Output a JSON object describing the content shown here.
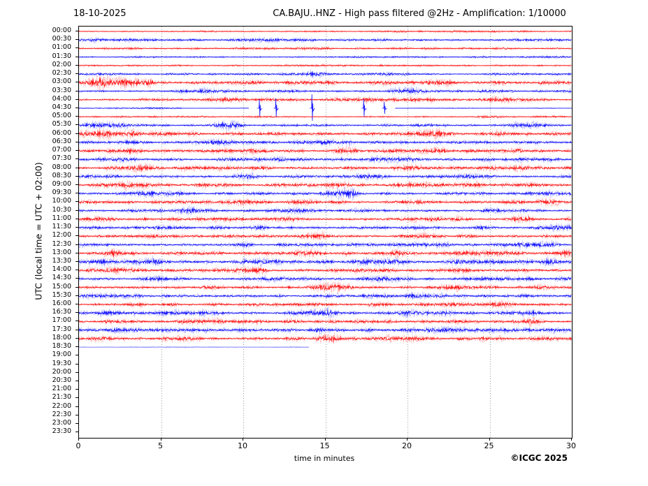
{
  "titles": {
    "date": "18-10-2025",
    "main": "CA.BAJU..HNZ - High pass filtered @2Hz - Amplification: 1/10000"
  },
  "axes": {
    "y_label": "UTC (local time = UTC + 02:00)",
    "x_label": "time in minutes",
    "x_ticks": [
      "0",
      "5",
      "10",
      "15",
      "20",
      "25",
      "30"
    ],
    "x_tick_minutes": [
      0,
      5,
      10,
      15,
      20,
      25,
      30
    ],
    "grid_minutes": [
      5,
      10,
      15,
      20,
      25
    ]
  },
  "footer": {
    "credit": "©ICGC 2025"
  },
  "colors": {
    "red": "#ff0000",
    "blue": "#0000ff",
    "partial_blue": "#7878ff",
    "grid": "#666666",
    "frame": "#000000"
  },
  "chart_data": {
    "type": "line",
    "variant": "helicorder-seismogram",
    "title": "CA.BAJU..HNZ - High pass filtered @2Hz - Amplification: 1/10000",
    "date": "18-10-2025",
    "xlabel": "time in minutes",
    "ylabel": "UTC (local time = UTC + 02:00)",
    "xlim": [
      0,
      30
    ],
    "row_interval_minutes": 30,
    "rows": [
      {
        "label": "00:00",
        "color": "red",
        "kind": "noise",
        "amp": 0.35,
        "bursts": [
          [
            8.5,
            2,
            0.8
          ],
          [
            14.5,
            1,
            1.2
          ],
          [
            20.5,
            1.5,
            1.0
          ],
          [
            26,
            2,
            0.6
          ]
        ]
      },
      {
        "label": "00:30",
        "color": "blue",
        "kind": "noise",
        "amp": 0.6,
        "bursts": [
          [
            1,
            1.5,
            0.8
          ],
          [
            13,
            2,
            0.5
          ],
          [
            21,
            2,
            0.5
          ]
        ]
      },
      {
        "label": "01:00",
        "color": "red",
        "kind": "noise",
        "amp": 0.5,
        "bursts": [
          [
            10,
            3,
            0.4
          ],
          [
            18,
            2,
            0.4
          ]
        ]
      },
      {
        "label": "01:30",
        "color": "blue",
        "kind": "noise",
        "amp": 0.45,
        "bursts": [
          [
            23,
            2,
            0.4
          ]
        ]
      },
      {
        "label": "02:00",
        "color": "red",
        "kind": "noise",
        "amp": 0.4,
        "bursts": [
          [
            7,
            2,
            0.4
          ],
          [
            16,
            2,
            0.3
          ]
        ]
      },
      {
        "label": "02:30",
        "color": "blue",
        "kind": "noise",
        "amp": 0.6,
        "bursts": [
          [
            14,
            1,
            1.0
          ],
          [
            17,
            0.8,
            0.9
          ],
          [
            19.5,
            1,
            0.8
          ],
          [
            27,
            1,
            0.6
          ]
        ]
      },
      {
        "label": "03:00",
        "color": "red",
        "kind": "noise",
        "amp": 0.9,
        "bursts": [
          [
            1.5,
            0.5,
            1.8
          ],
          [
            2.5,
            1.2,
            1.5
          ],
          [
            4,
            0.4,
            1.6
          ],
          [
            14.8,
            1,
            1.1
          ],
          [
            20,
            1.5,
            0.8
          ],
          [
            25,
            2,
            0.5
          ]
        ]
      },
      {
        "label": "03:30",
        "color": "blue",
        "kind": "noise",
        "amp": 0.7,
        "bursts": [
          [
            8,
            1,
            0.6
          ],
          [
            20,
            0.6,
            1.4
          ],
          [
            24,
            1.5,
            0.7
          ],
          [
            29.5,
            0.4,
            1.2
          ]
        ]
      },
      {
        "label": "04:00",
        "color": "red",
        "kind": "noise",
        "amp": 0.7,
        "bursts": [
          [
            5,
            1,
            0.7
          ],
          [
            8.5,
            0.8,
            0.8
          ],
          [
            17,
            1,
            0.6
          ],
          [
            20.5,
            1,
            0.7
          ],
          [
            25.5,
            1,
            0.8
          ]
        ]
      },
      {
        "label": "04:30",
        "color": "blue",
        "kind": "spikes",
        "amp": 0.2,
        "segments": [
          [
            0,
            6.3,
            0.45
          ],
          [
            6.3,
            10.35,
            0.14
          ],
          [
            19.25,
            30,
            0.2
          ]
        ],
        "spikes": [
          {
            "t": 11.0,
            "h": 13
          },
          {
            "t": 12.0,
            "h": 14
          },
          {
            "t": 14.2,
            "h": 20
          },
          {
            "t": 17.35,
            "h": 13
          },
          {
            "t": 18.6,
            "h": 9
          }
        ]
      },
      {
        "label": "05:00",
        "color": "red",
        "kind": "noise",
        "amp": 0.45,
        "bursts": [
          [
            3,
            1,
            0.5
          ],
          [
            25,
            1.5,
            0.5
          ]
        ]
      },
      {
        "label": "05:30",
        "color": "blue",
        "kind": "noise",
        "amp": 0.8,
        "bursts": [
          [
            1.5,
            0.8,
            0.9
          ],
          [
            9,
            0.5,
            1.6
          ],
          [
            13,
            1,
            0.5
          ],
          [
            21,
            1,
            0.6
          ],
          [
            27.5,
            1,
            0.7
          ]
        ]
      },
      {
        "label": "06:00",
        "color": "red",
        "kind": "noise",
        "amp": 0.95,
        "bursts": [
          [
            1.5,
            1,
            1.0
          ],
          [
            3.5,
            1,
            0.9
          ],
          [
            12,
            1.5,
            0.5
          ],
          [
            22,
            0.8,
            1.5
          ],
          [
            26,
            1,
            0.6
          ]
        ]
      },
      {
        "label": "06:30",
        "color": "blue",
        "kind": "noise",
        "amp": 0.85,
        "bursts": [
          [
            2.5,
            1,
            0.7
          ],
          [
            8,
            1,
            0.6
          ],
          [
            16,
            0.8,
            1.3
          ],
          [
            23,
            1,
            0.5
          ]
        ]
      },
      {
        "label": "07:00",
        "color": "red",
        "kind": "noise",
        "amp": 0.85,
        "bursts": [
          [
            4,
            1,
            0.6
          ],
          [
            11.5,
            1,
            0.9
          ],
          [
            16,
            1,
            0.6
          ],
          [
            22,
            1.5,
            0.6
          ],
          [
            26.5,
            0.8,
            0.9
          ]
        ]
      },
      {
        "label": "07:30",
        "color": "blue",
        "kind": "noise",
        "amp": 0.8,
        "bursts": [
          [
            3,
            1,
            0.6
          ],
          [
            12,
            1.5,
            0.5
          ],
          [
            19,
            1,
            0.6
          ],
          [
            28.5,
            0.8,
            0.9
          ]
        ]
      },
      {
        "label": "08:00",
        "color": "red",
        "kind": "noise",
        "amp": 0.85,
        "bursts": [
          [
            4,
            0.8,
            1.0
          ],
          [
            9,
            1.5,
            0.5
          ],
          [
            15,
            1,
            0.5
          ],
          [
            20,
            1,
            0.8
          ],
          [
            27,
            1.5,
            0.5
          ]
        ]
      },
      {
        "label": "08:30",
        "color": "blue",
        "kind": "noise",
        "amp": 0.8,
        "bursts": [
          [
            2,
            1,
            0.6
          ],
          [
            10,
            0.6,
            1.2
          ],
          [
            17,
            1.5,
            0.5
          ],
          [
            24,
            1,
            0.5
          ],
          [
            29.5,
            0.4,
            1.1
          ]
        ]
      },
      {
        "label": "09:00",
        "color": "red",
        "kind": "noise",
        "amp": 0.9,
        "bursts": [
          [
            3,
            1,
            0.6
          ],
          [
            8,
            0.8,
            0.8
          ],
          [
            16,
            0.7,
            1.6
          ],
          [
            20.5,
            1,
            0.7
          ],
          [
            25,
            1.5,
            0.5
          ]
        ]
      },
      {
        "label": "09:30",
        "color": "blue",
        "kind": "noise",
        "amp": 0.9,
        "bursts": [
          [
            5,
            1,
            0.5
          ],
          [
            16,
            0.8,
            1.5
          ],
          [
            23,
            0.7,
            1.3
          ],
          [
            28,
            1,
            0.5
          ]
        ]
      },
      {
        "label": "10:00",
        "color": "red",
        "kind": "noise",
        "amp": 0.85,
        "bursts": [
          [
            2,
            1,
            0.7
          ],
          [
            9,
            1.5,
            0.5
          ],
          [
            14,
            1,
            0.6
          ],
          [
            21,
            1,
            0.7
          ],
          [
            28,
            1,
            0.6
          ]
        ]
      },
      {
        "label": "10:30",
        "color": "blue",
        "kind": "noise",
        "amp": 0.85,
        "bursts": [
          [
            6.5,
            0.8,
            1.3
          ],
          [
            7.8,
            0.5,
            1.2
          ],
          [
            13,
            1,
            0.5
          ],
          [
            19,
            1.5,
            0.5
          ],
          [
            26,
            1,
            0.5
          ]
        ]
      },
      {
        "label": "11:00",
        "color": "red",
        "kind": "noise",
        "amp": 0.85,
        "bursts": [
          [
            1.5,
            1,
            0.8
          ],
          [
            7,
            1,
            0.8
          ],
          [
            13.5,
            1,
            0.5
          ],
          [
            20,
            1.5,
            0.5
          ],
          [
            27,
            0.6,
            1.7
          ]
        ]
      },
      {
        "label": "11:30",
        "color": "blue",
        "kind": "noise",
        "amp": 0.8,
        "bursts": [
          [
            4,
            1,
            0.6
          ],
          [
            11,
            1,
            0.5
          ],
          [
            17.5,
            1,
            0.6
          ],
          [
            24,
            1.5,
            0.5
          ],
          [
            29,
            0.8,
            0.8
          ]
        ]
      },
      {
        "label": "12:00",
        "color": "red",
        "kind": "noise",
        "amp": 0.8,
        "bursts": [
          [
            2,
            1,
            0.6
          ],
          [
            8,
            1.5,
            0.5
          ],
          [
            14.6,
            0.6,
            1.4
          ],
          [
            21,
            1,
            0.5
          ],
          [
            26.5,
            1,
            0.5
          ]
        ]
      },
      {
        "label": "12:30",
        "color": "blue",
        "kind": "noise",
        "amp": 0.9,
        "bursts": [
          [
            1,
            1,
            0.7
          ],
          [
            9,
            1,
            0.6
          ],
          [
            15,
            1.5,
            0.5
          ],
          [
            22,
            1,
            0.6
          ],
          [
            28,
            1,
            0.6
          ]
        ]
      },
      {
        "label": "13:00",
        "color": "red",
        "kind": "noise",
        "amp": 1.0,
        "bursts": [
          [
            2,
            0.8,
            1.0
          ],
          [
            7,
            0.8,
            1.0
          ],
          [
            13,
            1.5,
            0.5
          ],
          [
            19,
            1,
            0.6
          ],
          [
            24.5,
            1,
            0.6
          ],
          [
            29,
            0.6,
            1.0
          ]
        ]
      },
      {
        "label": "13:30",
        "color": "blue",
        "kind": "noise",
        "amp": 1.0,
        "bursts": [
          [
            1,
            0.8,
            0.9
          ],
          [
            4.5,
            0.8,
            0.9
          ],
          [
            12,
            1.5,
            0.5
          ],
          [
            18,
            1,
            0.6
          ],
          [
            24,
            1,
            0.5
          ],
          [
            29,
            0.5,
            1.5
          ]
        ]
      },
      {
        "label": "14:00",
        "color": "red",
        "kind": "noise",
        "amp": 0.9,
        "bursts": [
          [
            3,
            1,
            0.7
          ],
          [
            10,
            0.8,
            0.9
          ],
          [
            16,
            1.5,
            0.5
          ],
          [
            23.5,
            0.8,
            1.1
          ],
          [
            28,
            1,
            0.5
          ]
        ]
      },
      {
        "label": "14:30",
        "color": "blue",
        "kind": "noise",
        "amp": 0.85,
        "bursts": [
          [
            5,
            1,
            0.6
          ],
          [
            12,
            1,
            0.5
          ],
          [
            18,
            1,
            0.6
          ],
          [
            25,
            1,
            0.5
          ],
          [
            29.6,
            0.4,
            1.3
          ]
        ]
      },
      {
        "label": "15:00",
        "color": "red",
        "kind": "noise",
        "amp": 0.85,
        "bursts": [
          [
            2.5,
            1,
            0.6
          ],
          [
            9,
            1,
            0.5
          ],
          [
            15.3,
            0.7,
            1.2
          ],
          [
            23,
            0.7,
            1.2
          ],
          [
            27.5,
            1,
            0.5
          ]
        ]
      },
      {
        "label": "15:30",
        "color": "blue",
        "kind": "noise",
        "amp": 0.85,
        "bursts": [
          [
            1.5,
            1,
            0.7
          ],
          [
            8,
            1,
            0.5
          ],
          [
            15.3,
            0.7,
            1.3
          ],
          [
            21,
            1.5,
            0.5
          ],
          [
            27,
            1,
            0.5
          ]
        ]
      },
      {
        "label": "16:00",
        "color": "red",
        "kind": "noise",
        "amp": 0.8,
        "bursts": [
          [
            4,
            1,
            0.5
          ],
          [
            11,
            1,
            0.5
          ],
          [
            17,
            1,
            0.5
          ],
          [
            22,
            1,
            0.6
          ],
          [
            26,
            0.8,
            0.9
          ]
        ]
      },
      {
        "label": "16:30",
        "color": "blue",
        "kind": "noise",
        "amp": 1.0,
        "bursts": [
          [
            2,
            1.5,
            0.7
          ],
          [
            7.5,
            1,
            0.6
          ],
          [
            15,
            0.8,
            1.2
          ],
          [
            20,
            1.5,
            0.5
          ],
          [
            27.5,
            1,
            0.6
          ]
        ]
      },
      {
        "label": "17:00",
        "color": "red",
        "kind": "noise",
        "amp": 0.9,
        "bursts": [
          [
            3,
            1,
            0.6
          ],
          [
            10,
            1.5,
            0.5
          ],
          [
            16,
            1,
            0.6
          ],
          [
            22,
            1,
            0.6
          ],
          [
            27,
            0.6,
            1.5
          ]
        ]
      },
      {
        "label": "17:30",
        "color": "blue",
        "kind": "noise",
        "amp": 1.1,
        "bursts": [
          [
            1,
            1,
            0.8
          ],
          [
            4.5,
            0.8,
            1.1
          ],
          [
            9,
            1.5,
            0.6
          ],
          [
            15,
            1,
            0.6
          ],
          [
            21,
            1,
            0.6
          ],
          [
            28,
            1,
            0.7
          ]
        ]
      },
      {
        "label": "18:00",
        "color": "red",
        "kind": "noise",
        "amp": 0.95,
        "bursts": [
          [
            2,
            1,
            0.7
          ],
          [
            6,
            0.8,
            0.9
          ],
          [
            15.5,
            0.8,
            1.3
          ],
          [
            20,
            1,
            0.8
          ],
          [
            25,
            1.5,
            0.5
          ]
        ]
      },
      {
        "label": "18:30",
        "color": "blue",
        "kind": "flat-partial",
        "amp": 0.3,
        "end": 14.0
      },
      {
        "label": "19:00",
        "color": "red",
        "kind": "empty"
      },
      {
        "label": "19:30",
        "color": "blue",
        "kind": "empty"
      },
      {
        "label": "20:00",
        "color": "red",
        "kind": "empty"
      },
      {
        "label": "20:30",
        "color": "blue",
        "kind": "empty"
      },
      {
        "label": "21:00",
        "color": "red",
        "kind": "empty"
      },
      {
        "label": "21:30",
        "color": "blue",
        "kind": "empty"
      },
      {
        "label": "22:00",
        "color": "red",
        "kind": "empty"
      },
      {
        "label": "22:30",
        "color": "blue",
        "kind": "empty"
      },
      {
        "label": "23:00",
        "color": "red",
        "kind": "empty"
      },
      {
        "label": "23:30",
        "color": "blue",
        "kind": "empty"
      }
    ]
  }
}
